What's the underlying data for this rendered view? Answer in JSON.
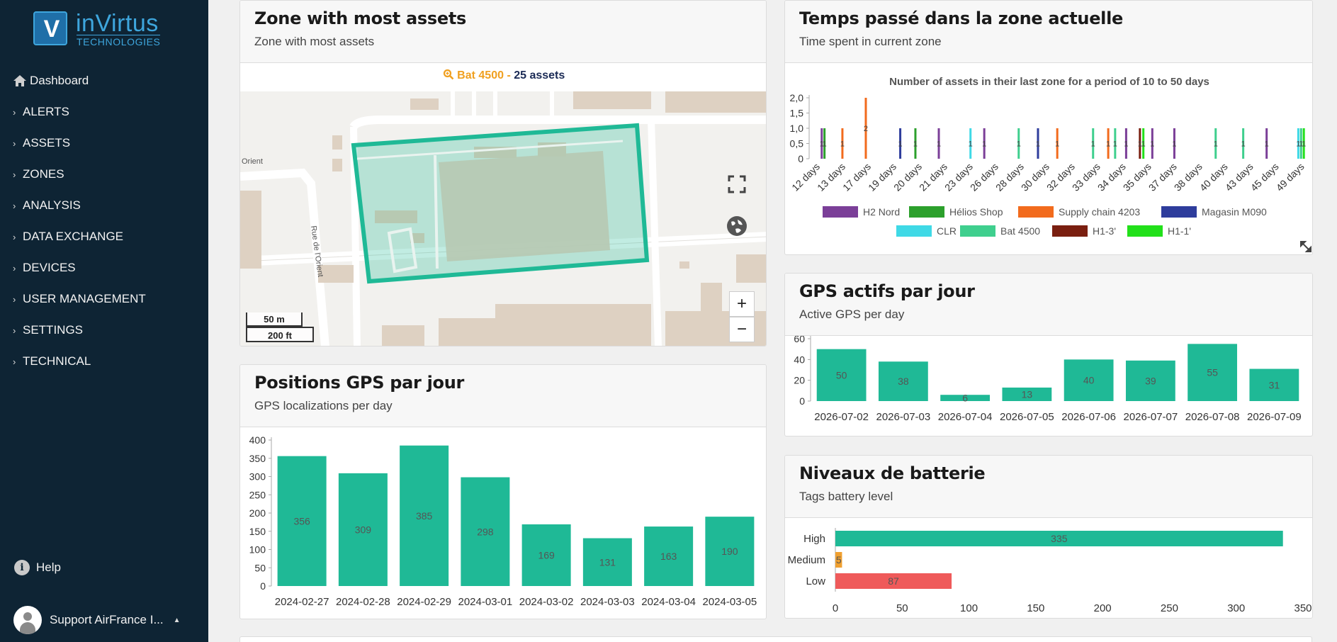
{
  "brand": {
    "logo_letter": "V",
    "name": "inVirtus",
    "sub": "TECHNOLOGIES"
  },
  "nav": {
    "items": [
      {
        "label": "Dashboard",
        "icon": "home-icon"
      },
      {
        "label": "ALERTS"
      },
      {
        "label": "ASSETS"
      },
      {
        "label": "ZONES"
      },
      {
        "label": "ANALYSIS"
      },
      {
        "label": "DATA EXCHANGE"
      },
      {
        "label": "DEVICES"
      },
      {
        "label": "USER MANAGEMENT"
      },
      {
        "label": "SETTINGS"
      },
      {
        "label": "TECHNICAL"
      }
    ],
    "chevron": "›",
    "help_label": "Help",
    "help_icon": "i",
    "user_label": "Support AirFrance I...",
    "user_caret": "▲"
  },
  "zone_card": {
    "title": "Zone with most assets",
    "subtitle": "Zone with most assets",
    "zone_name": "Bat 4500",
    "separator": " - ",
    "assets_label": "25 assets",
    "map_labels": {
      "street1": "Orient",
      "street2": "Rue de l'Orient"
    },
    "scale_m": "50 m",
    "scale_ft": "200 ft",
    "zoom_in": "+",
    "zoom_out": "−",
    "zone_fill": "#1fb996"
  },
  "time_card": {
    "title": "Temps passé dans la zone actuelle",
    "subtitle": "Time spent in current zone",
    "chart_data": {
      "type": "bar",
      "title": "Number of assets in their last zone for a period of 10 to 50 days",
      "categories": [
        "12 days",
        "13 days",
        "17 days",
        "19 days",
        "20 days",
        "21 days",
        "23 days",
        "26 days",
        "28 days",
        "30 days",
        "32 days",
        "33 days",
        "34 days",
        "35 days",
        "37 days",
        "38 days",
        "40 days",
        "43 days",
        "45 days",
        "49 days"
      ],
      "y_ticks": [
        "2,0",
        "1,5",
        "1,0",
        "0,5",
        "0"
      ],
      "ylim": [
        0,
        2
      ],
      "bars": [
        {
          "x": 11,
          "value": 1,
          "series": "H2 Nord"
        },
        {
          "x": 11.2,
          "value": 1,
          "series": "Hélios Shop"
        },
        {
          "x": 12.5,
          "value": 1,
          "series": "Supply chain 4203"
        },
        {
          "x": 14.2,
          "value": 2,
          "series": "Supply chain 4203"
        },
        {
          "x": 16.7,
          "value": 1,
          "series": "Magasin M090"
        },
        {
          "x": 17.8,
          "value": 1,
          "series": "Hélios Shop"
        },
        {
          "x": 19.5,
          "value": 1,
          "series": "H2 Nord"
        },
        {
          "x": 21.8,
          "value": 1,
          "series": "CLR"
        },
        {
          "x": 22.8,
          "value": 1,
          "series": "H2 Nord"
        },
        {
          "x": 25.3,
          "value": 1,
          "series": "Bat 4500"
        },
        {
          "x": 26.7,
          "value": 1,
          "series": "Magasin M090"
        },
        {
          "x": 28.1,
          "value": 1,
          "series": "Supply chain 4203"
        },
        {
          "x": 30.7,
          "value": 1,
          "series": "Bat 4500"
        },
        {
          "x": 31.8,
          "value": 1,
          "series": "Supply chain 4203"
        },
        {
          "x": 32.3,
          "value": 1,
          "series": "Bat 4500"
        },
        {
          "x": 33.1,
          "value": 1,
          "series": "H2 Nord"
        },
        {
          "x": 34.1,
          "value": 1,
          "series": "H1-3'"
        },
        {
          "x": 34.35,
          "value": 1,
          "series": "H1-1'"
        },
        {
          "x": 35,
          "value": 1,
          "series": "H2 Nord"
        },
        {
          "x": 36.6,
          "value": 1,
          "series": "H2 Nord"
        },
        {
          "x": 39.6,
          "value": 1,
          "series": "Bat 4500"
        },
        {
          "x": 41.6,
          "value": 1,
          "series": "Bat 4500"
        },
        {
          "x": 43.3,
          "value": 1,
          "series": "H2 Nord"
        },
        {
          "x": 45.6,
          "value": 1,
          "series": "CLR"
        },
        {
          "x": 45.8,
          "value": 1,
          "series": "Bat 4500"
        },
        {
          "x": 46.0,
          "value": 1,
          "series": "H1-1'"
        }
      ],
      "series": [
        {
          "name": "H2 Nord",
          "color": "#7b3f98"
        },
        {
          "name": "Hélios Shop",
          "color": "#2ca02c"
        },
        {
          "name": "Supply chain 4203",
          "color": "#f26b1d"
        },
        {
          "name": "Magasin M090",
          "color": "#2e3d9c"
        },
        {
          "name": "CLR",
          "color": "#3fd9e6"
        },
        {
          "name": "Bat 4500",
          "color": "#3fcf8e"
        },
        {
          "name": "H1-3'",
          "color": "#7a1f10"
        },
        {
          "name": "H1-1'",
          "color": "#22e01a"
        }
      ],
      "legend": "bottom"
    }
  },
  "gps_active_card": {
    "title": "GPS actifs par jour",
    "subtitle": "Active GPS per day",
    "chart_data": {
      "type": "bar",
      "categories": [
        "2026-07-02",
        "2026-07-03",
        "2026-07-04",
        "2026-07-05",
        "2026-07-06",
        "2026-07-07",
        "2026-07-08",
        "2026-07-09"
      ],
      "values": [
        50,
        38,
        6,
        13,
        40,
        39,
        55,
        31
      ],
      "y_ticks": [
        "60",
        "40",
        "20",
        "0"
      ],
      "ylim": [
        0,
        60
      ],
      "color": "#1fb996"
    }
  },
  "gps_positions_card": {
    "title": "Positions GPS par jour",
    "subtitle": "GPS localizations per day",
    "chart_data": {
      "type": "bar",
      "categories": [
        "2024-02-27",
        "2024-02-28",
        "2024-02-29",
        "2024-03-01",
        "2024-03-02",
        "2024-03-03",
        "2024-03-04",
        "2024-03-05"
      ],
      "values": [
        356,
        309,
        385,
        298,
        169,
        131,
        163,
        190
      ],
      "y_ticks": [
        "400",
        "350",
        "300",
        "250",
        "200",
        "150",
        "100",
        "50",
        "0"
      ],
      "ylim": [
        0,
        400
      ],
      "color": "#1fb996"
    }
  },
  "battery_card": {
    "title": "Niveaux de batterie",
    "subtitle": "Tags battery level",
    "chart_data": {
      "type": "bar",
      "orientation": "horizontal",
      "categories": [
        "High",
        "Medium",
        "Low"
      ],
      "values": [
        335,
        5,
        87
      ],
      "colors": [
        "#1fb996",
        "#f0a030",
        "#ef5a5a"
      ],
      "x_ticks": [
        "0",
        "50",
        "100",
        "150",
        "200",
        "250",
        "300",
        "350"
      ],
      "xlim": [
        0,
        350
      ]
    }
  }
}
